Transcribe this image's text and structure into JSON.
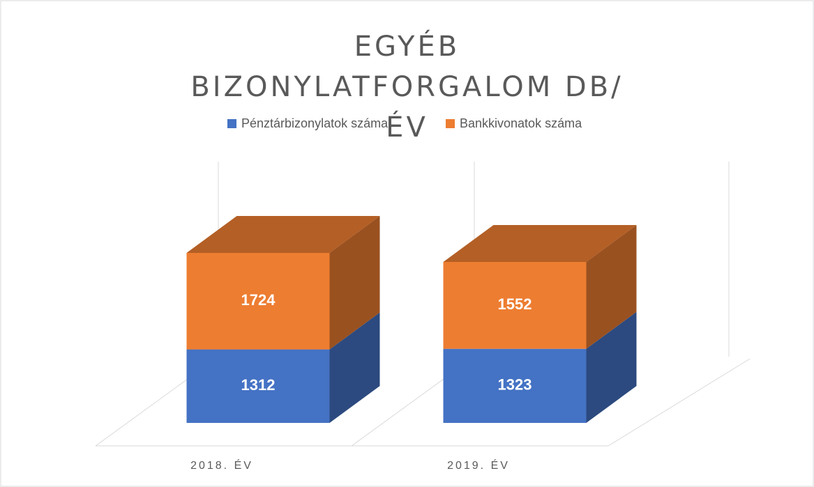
{
  "chart_data": {
    "type": "bar3d_stacked",
    "title": "EGYÉB BIZONYLATFORGALOM DB/ÉV",
    "categories": [
      "2018. ÉV",
      "2019. ÉV"
    ],
    "series": [
      {
        "name": "Pénztárbizonylatok száma",
        "color": "#4472c4",
        "values": [
          1312,
          1323
        ]
      },
      {
        "name": "Bankkivonatok száma",
        "color": "#ed7d31",
        "values": [
          1724,
          1552
        ]
      }
    ],
    "legend": "top"
  }
}
